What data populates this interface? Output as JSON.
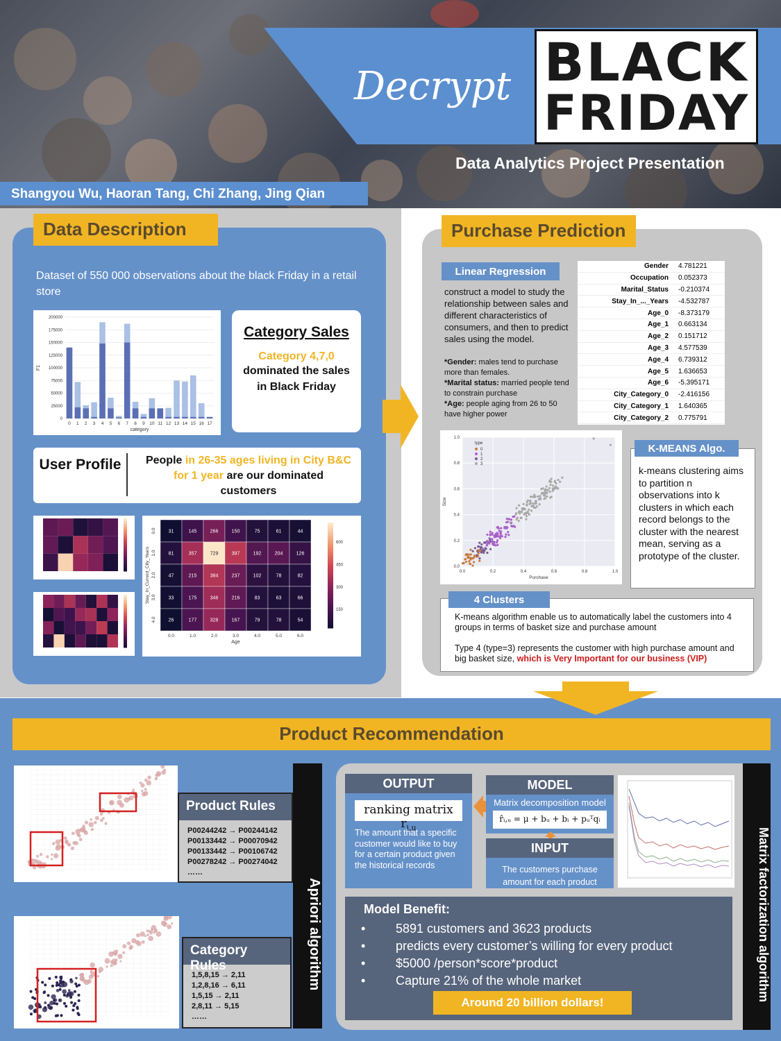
{
  "header": {
    "title_word": "Decrypt",
    "logo_line1": "BLACK",
    "logo_line2": "FRIDAY",
    "subtitle": "Data Analytics Project Presentation",
    "authors": "Shangyou Wu, Haoran Tang, Chi Zhang, Jing Qian"
  },
  "data_description": {
    "heading": "Data Description",
    "text": "Dataset of 550 000 observations about the black Friday in a retail store",
    "category_sales": {
      "title": "Category Sales",
      "highlight": "Category 4,7,0",
      "text": "dominated the sales in Black Friday"
    },
    "user_profile": {
      "title": "User Profile",
      "text_1": "People ",
      "text_hl": "in 26-35 ages living in City B&C for 1 year",
      "text_2": " are our dominated customers"
    }
  },
  "bar_chart_data": {
    "type": "bar",
    "categories": [
      "0",
      "1",
      "2",
      "3",
      "4",
      "5",
      "6",
      "7",
      "8",
      "9",
      "10",
      "11",
      "12",
      "13",
      "14",
      "15",
      "16",
      "17"
    ],
    "series": [
      {
        "values": [
          140000,
          22000,
          20000,
          3000,
          148000,
          20000,
          2000,
          150000,
          20000,
          3000,
          20000,
          20000,
          3000,
          3000,
          3000,
          3000,
          3000,
          3000
        ]
      },
      {
        "values": [
          140000,
          72000,
          26000,
          32000,
          190000,
          41000,
          5000,
          187000,
          33000,
          9000,
          40000,
          20000,
          21000,
          75000,
          73000,
          85000,
          30000,
          3000
        ]
      }
    ],
    "ylabel": "F1",
    "xlabel": "category",
    "ylim": [
      0,
      200000
    ],
    "yticks": [
      "0",
      "25000",
      "50000",
      "75000",
      "100000",
      "125000",
      "150000",
      "175000",
      "200000"
    ]
  },
  "heatmap": {
    "values": [
      [
        31,
        145,
        266,
        150,
        75,
        61,
        44
      ],
      [
        81,
        357,
        729,
        397,
        192,
        204,
        126
      ],
      [
        47,
        215,
        384,
        237,
        102,
        78,
        82
      ],
      [
        33,
        175,
        346,
        216,
        83,
        63,
        66
      ],
      [
        26,
        177,
        328,
        167,
        79,
        78,
        54
      ]
    ],
    "xticks": [
      "0.0",
      "1.0",
      "2.0",
      "3.0",
      "4.0",
      "5.0",
      "6.0"
    ],
    "yticks": [
      "0.0",
      "1.0",
      "2.0",
      "3.0",
      "4.0"
    ],
    "xlabel": "Age",
    "ylabel": "Stay_In_Current_City_Years",
    "cbar_ticks": [
      "150",
      "300",
      "450",
      "600"
    ]
  },
  "purchase_prediction": {
    "heading": "Purchase Prediction",
    "lr_label": "Linear Regression",
    "lr_text": "construct a model to study the relationship between sales and different characteristics of consumers, and then to predict sales using the model.",
    "notes": [
      {
        "k": "*Gender:",
        "v": " males tend to purchase more than females."
      },
      {
        "k": "*Marital status:",
        "v": " married people tend to constrain purchase"
      },
      {
        "k": "*Age:",
        "v": " people aging from 26 to 50 have higher power"
      }
    ],
    "coefficients": [
      {
        "name": "Gender",
        "value": "4.781221"
      },
      {
        "name": "Occupation",
        "value": "0.052373"
      },
      {
        "name": "Marital_Status",
        "value": "-0.210374"
      },
      {
        "name": "Stay_In_..._Years",
        "value": "-4.532787"
      },
      {
        "name": "Age_0",
        "value": "-8.373179"
      },
      {
        "name": "Age_1",
        "value": "0.663134"
      },
      {
        "name": "Age_2",
        "value": "0.151712"
      },
      {
        "name": "Age_3",
        "value": "4.577539"
      },
      {
        "name": "Age_4",
        "value": "6.739312"
      },
      {
        "name": "Age_5",
        "value": "1.636653"
      },
      {
        "name": "Age_6",
        "value": "-5.395171"
      },
      {
        "name": "City_Category_0",
        "value": "-2.416156"
      },
      {
        "name": "City_Category_1",
        "value": "1.640365"
      },
      {
        "name": "City_Category_2",
        "value": "0.775791"
      }
    ],
    "km_label": "K-MEANS Algo.",
    "km_text": "k-means clustering aims to partition n observations into k clusters in which each record belongs to the cluster with the nearest mean, serving as a prototype of the cluster.",
    "scatter": {
      "legend_title": "type",
      "legend": [
        "0",
        "1",
        "2",
        "3"
      ],
      "xlabel": "Purchase",
      "ylabel": "Size",
      "xticks": [
        "0.0",
        "0.2",
        "0.4",
        "0.6",
        "0.8",
        "1.0"
      ],
      "yticks": [
        "0.0",
        "0.2",
        "0.4",
        "0.6",
        "0.8",
        "1.0"
      ],
      "colors": [
        "#c87a3a",
        "#a861c9",
        "#7b5b8f",
        "#a8a8a8"
      ]
    },
    "cl_label": "4 Clusters",
    "cl_text_1": "K-means algorithm enable us to automatically label the customers into 4 groups in terms of basket size and purchase amount",
    "cl_text_2": "Type 4 (type=3) represents the customer with high purchase amount and big basket size, ",
    "cl_text_red": "which is Very Important for our business (VIP)"
  },
  "product_recommendation": {
    "heading": "Product Recommendation",
    "product_rules": {
      "title": "Product Rules",
      "items": [
        "P00244242 → P00244142",
        "P00133442 → P00070942",
        "P00133442 → P00106742",
        "P00278242 → P00274042",
        "……"
      ]
    },
    "category_rules": {
      "title": "Category Rules",
      "items": [
        "1,5,8,15 → 2,11",
        "1,2,8,16 → 6,11",
        "1,5,15 → 2,11",
        "2,8,11 → 5,15",
        "……"
      ]
    },
    "apriori": "Apriori algorithm",
    "mf": "Matrix factorization algorithm",
    "output": {
      "title": "OUTPUT",
      "formula": "ranking matrix r",
      "formula_sub": "i,u",
      "desc": "The amount that a specific customer would like to buy for a certain product given the historical records"
    },
    "model": {
      "title": "MODEL",
      "sub": "Matrix decomposition model",
      "formula": "r̂ᵢ,ᵤ = μ + bᵤ + bᵢ + pᵤᵀqᵢ"
    },
    "input": {
      "title": "INPUT",
      "desc": "The customers purchase amount for each product"
    },
    "benefit": {
      "title": "Model Benefit:",
      "items": [
        "5891 customers and 3623 products",
        "predicts every customer’s willing for every product",
        "$5000 /person*score*product",
        "Capture 21% of the whole market"
      ],
      "bullet": "•",
      "total": "Around 20 billion dollars!"
    }
  },
  "colors": {
    "blue": "#6591c9",
    "yellow": "#f1b524",
    "slate": "#56647c",
    "gray": "#c9c9c9"
  }
}
